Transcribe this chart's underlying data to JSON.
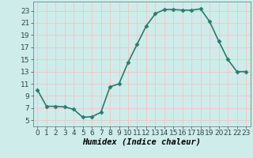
{
  "x": [
    0,
    1,
    2,
    3,
    4,
    5,
    6,
    7,
    8,
    9,
    10,
    11,
    12,
    13,
    14,
    15,
    16,
    17,
    18,
    19,
    20,
    21,
    22,
    23
  ],
  "y": [
    10.0,
    7.3,
    7.3,
    7.2,
    6.8,
    5.5,
    5.6,
    6.3,
    10.5,
    11.0,
    14.5,
    17.5,
    20.5,
    22.5,
    23.2,
    23.2,
    23.1,
    23.1,
    23.3,
    21.2,
    18.0,
    15.0,
    13.0,
    13.0
  ],
  "line_color": "#2d7a6e",
  "marker": "D",
  "marker_size": 2.5,
  "bg_color": "#ceecea",
  "grid_color": "#f0c8c8",
  "xlabel": "Humidex (Indice chaleur)",
  "xlim": [
    -0.5,
    23.5
  ],
  "ylim": [
    4,
    24.5
  ],
  "yticks": [
    5,
    7,
    9,
    11,
    13,
    15,
    17,
    19,
    21,
    23
  ],
  "xticks": [
    0,
    1,
    2,
    3,
    4,
    5,
    6,
    7,
    8,
    9,
    10,
    11,
    12,
    13,
    14,
    15,
    16,
    17,
    18,
    19,
    20,
    21,
    22,
    23
  ],
  "tick_fontsize": 6.5,
  "xlabel_fontsize": 7.5,
  "line_width": 1.2
}
